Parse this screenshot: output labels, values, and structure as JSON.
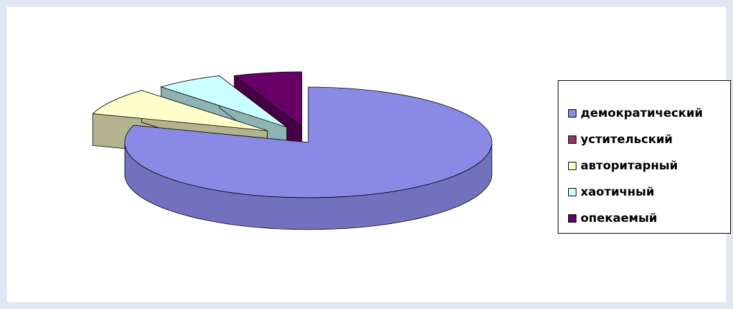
{
  "chart_data": {
    "type": "pie",
    "style": "3d-exploded",
    "categories": [
      "демократический",
      "устительский",
      "авторитарный",
      "хаотичный",
      "опекаемый"
    ],
    "values": [
      80,
      0,
      8,
      6,
      6
    ],
    "colors": [
      "#8a8ae6",
      "#993366",
      "#ffffcc",
      "#ccffff",
      "#660066"
    ],
    "legend_position": "right"
  }
}
